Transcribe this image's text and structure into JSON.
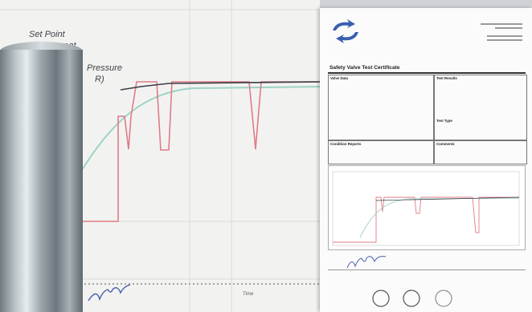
{
  "graph": {
    "legend": {
      "set_point": "Set Point",
      "lift_reseat": "Lift / Reseat",
      "pressure": "Pressure",
      "pressure_tail": "R)"
    },
    "x_axis_label": "Time",
    "colors": {
      "set_point": "#e07b86",
      "lift": "#3b3e46",
      "pressure": "#9fd2c6",
      "grid": "#d9dbd9"
    }
  },
  "certificate": {
    "title": "Safety Valve Test Certificate",
    "sections": {
      "valve_data": "Valve Data",
      "test_results": "Test Results",
      "test_type": "Test Type",
      "condition_reports": "Condition Reports",
      "comments": "Comments"
    }
  }
}
